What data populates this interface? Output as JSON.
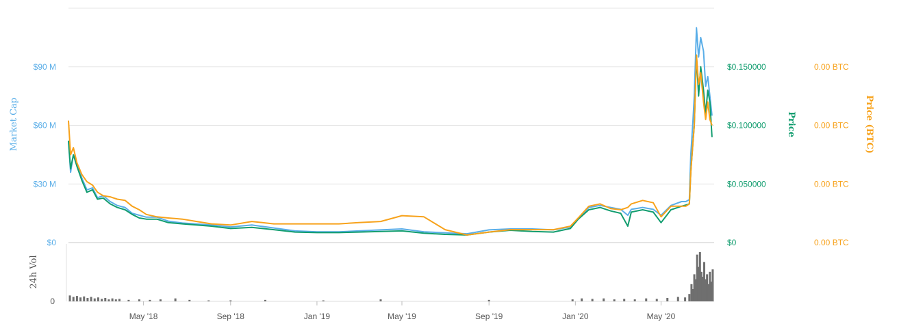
{
  "chart_data": {
    "type": "line",
    "x_ticks": [
      "May '18",
      "Sep '18",
      "Jan '19",
      "May '19",
      "Sep '19",
      "Jan '20",
      "May '20"
    ],
    "x_range": [
      "2018-01-15",
      "2020-07-15"
    ],
    "axes": {
      "market_cap": {
        "title": "Market Cap",
        "color": "#5aaee8",
        "ticks": [
          "$0",
          "$30 M",
          "$60 M",
          "$90 M"
        ],
        "ylim": [
          0,
          120
        ]
      },
      "price": {
        "title": "Price",
        "color": "#129d6f",
        "ticks": [
          "$0",
          "$0.050000",
          "$0.100000",
          "$0.150000"
        ],
        "ylim": [
          0,
          0.2
        ]
      },
      "price_btc": {
        "title": "Price (BTC)",
        "color": "#f7a21b",
        "ticks": [
          "0.00 BTC",
          "0.00 BTC",
          "0.00 BTC",
          "0.00 BTC"
        ]
      },
      "volume": {
        "title": "24h Vol",
        "color": "#555555",
        "ticks": [
          "0"
        ]
      }
    },
    "series": [
      {
        "name": "Market Cap",
        "key": "market_cap",
        "unit": "M USD",
        "points": [
          [
            "2018-01-15",
            52
          ],
          [
            "2018-01-18",
            36
          ],
          [
            "2018-01-22",
            45
          ],
          [
            "2018-01-27",
            40
          ],
          [
            "2018-02-03",
            33
          ],
          [
            "2018-02-10",
            27
          ],
          [
            "2018-02-18",
            28
          ],
          [
            "2018-02-25",
            23
          ],
          [
            "2018-03-05",
            24
          ],
          [
            "2018-03-15",
            21
          ],
          [
            "2018-03-25",
            19
          ],
          [
            "2018-04-05",
            18
          ],
          [
            "2018-04-15",
            15
          ],
          [
            "2018-04-25",
            14
          ],
          [
            "2018-05-05",
            13
          ],
          [
            "2018-05-20",
            13
          ],
          [
            "2018-06-05",
            11
          ],
          [
            "2018-06-25",
            10
          ],
          [
            "2018-07-15",
            9.5
          ],
          [
            "2018-08-05",
            9
          ],
          [
            "2018-09-01",
            8
          ],
          [
            "2018-10-01",
            9
          ],
          [
            "2018-11-01",
            7.5
          ],
          [
            "2018-12-01",
            6
          ],
          [
            "2019-01-01",
            5.5
          ],
          [
            "2019-02-01",
            5.5
          ],
          [
            "2019-03-01",
            6
          ],
          [
            "2019-04-01",
            6.5
          ],
          [
            "2019-05-01",
            7
          ],
          [
            "2019-06-01",
            5.5
          ],
          [
            "2019-07-01",
            5
          ],
          [
            "2019-08-01",
            4.5
          ],
          [
            "2019-09-01",
            6.5
          ],
          [
            "2019-10-01",
            7
          ],
          [
            "2019-11-01",
            7
          ],
          [
            "2019-12-01",
            6.5
          ],
          [
            "2019-12-25",
            8
          ],
          [
            "2020-01-05",
            12
          ],
          [
            "2020-01-20",
            18
          ],
          [
            "2020-02-05",
            19
          ],
          [
            "2020-02-20",
            18
          ],
          [
            "2020-03-05",
            17
          ],
          [
            "2020-03-15",
            14
          ],
          [
            "2020-03-20",
            17
          ],
          [
            "2020-04-05",
            18
          ],
          [
            "2020-04-20",
            17
          ],
          [
            "2020-05-01",
            14
          ],
          [
            "2020-05-15",
            19
          ],
          [
            "2020-05-30",
            21
          ],
          [
            "2020-06-05",
            21
          ],
          [
            "2020-06-10",
            22
          ],
          [
            "2020-06-12",
            45
          ],
          [
            "2020-06-15",
            62
          ],
          [
            "2020-06-17",
            75
          ],
          [
            "2020-06-20",
            110
          ],
          [
            "2020-06-23",
            95
          ],
          [
            "2020-06-26",
            105
          ],
          [
            "2020-06-30",
            98
          ],
          [
            "2020-07-03",
            80
          ],
          [
            "2020-07-06",
            85
          ],
          [
            "2020-07-09",
            75
          ],
          [
            "2020-07-12",
            65
          ]
        ]
      },
      {
        "name": "Price",
        "key": "price",
        "unit": "USD",
        "points": [
          [
            "2018-01-15",
            0.087
          ],
          [
            "2018-01-18",
            0.063
          ],
          [
            "2018-01-22",
            0.075
          ],
          [
            "2018-01-27",
            0.065
          ],
          [
            "2018-02-03",
            0.053
          ],
          [
            "2018-02-10",
            0.043
          ],
          [
            "2018-02-18",
            0.045
          ],
          [
            "2018-02-25",
            0.037
          ],
          [
            "2018-03-05",
            0.038
          ],
          [
            "2018-03-15",
            0.033
          ],
          [
            "2018-03-25",
            0.03
          ],
          [
            "2018-04-05",
            0.028
          ],
          [
            "2018-04-15",
            0.024
          ],
          [
            "2018-04-25",
            0.021
          ],
          [
            "2018-05-05",
            0.02
          ],
          [
            "2018-05-20",
            0.02
          ],
          [
            "2018-06-05",
            0.017
          ],
          [
            "2018-06-25",
            0.016
          ],
          [
            "2018-07-15",
            0.015
          ],
          [
            "2018-08-05",
            0.014
          ],
          [
            "2018-09-01",
            0.012
          ],
          [
            "2018-10-01",
            0.013
          ],
          [
            "2018-11-01",
            0.011
          ],
          [
            "2018-12-01",
            0.009
          ],
          [
            "2019-01-01",
            0.0085
          ],
          [
            "2019-02-01",
            0.0085
          ],
          [
            "2019-03-01",
            0.009
          ],
          [
            "2019-04-01",
            0.0095
          ],
          [
            "2019-05-01",
            0.01
          ],
          [
            "2019-06-01",
            0.008
          ],
          [
            "2019-07-01",
            0.007
          ],
          [
            "2019-08-01",
            0.0065
          ],
          [
            "2019-09-01",
            0.009
          ],
          [
            "2019-10-01",
            0.0105
          ],
          [
            "2019-11-01",
            0.0095
          ],
          [
            "2019-12-01",
            0.009
          ],
          [
            "2019-12-25",
            0.012
          ],
          [
            "2020-01-05",
            0.02
          ],
          [
            "2020-01-20",
            0.028
          ],
          [
            "2020-02-05",
            0.03
          ],
          [
            "2020-02-20",
            0.027
          ],
          [
            "2020-03-05",
            0.025
          ],
          [
            "2020-03-15",
            0.014
          ],
          [
            "2020-03-20",
            0.026
          ],
          [
            "2020-04-05",
            0.028
          ],
          [
            "2020-04-20",
            0.026
          ],
          [
            "2020-05-01",
            0.017
          ],
          [
            "2020-05-15",
            0.028
          ],
          [
            "2020-05-30",
            0.031
          ],
          [
            "2020-06-05",
            0.032
          ],
          [
            "2020-06-10",
            0.033
          ],
          [
            "2020-06-12",
            0.06
          ],
          [
            "2020-06-15",
            0.085
          ],
          [
            "2020-06-17",
            0.1
          ],
          [
            "2020-06-20",
            0.16
          ],
          [
            "2020-06-23",
            0.125
          ],
          [
            "2020-06-26",
            0.15
          ],
          [
            "2020-06-30",
            0.13
          ],
          [
            "2020-07-03",
            0.11
          ],
          [
            "2020-07-06",
            0.13
          ],
          [
            "2020-07-09",
            0.12
          ],
          [
            "2020-07-12",
            0.09
          ]
        ]
      },
      {
        "name": "Price (BTC)",
        "key": "price_btc",
        "unit": "relative",
        "points": [
          [
            "2018-01-15",
            0.104
          ],
          [
            "2018-01-18",
            0.075
          ],
          [
            "2018-01-22",
            0.081
          ],
          [
            "2018-01-27",
            0.068
          ],
          [
            "2018-02-03",
            0.058
          ],
          [
            "2018-02-10",
            0.052
          ],
          [
            "2018-02-18",
            0.049
          ],
          [
            "2018-02-25",
            0.043
          ],
          [
            "2018-03-05",
            0.04
          ],
          [
            "2018-03-15",
            0.039
          ],
          [
            "2018-03-25",
            0.037
          ],
          [
            "2018-04-05",
            0.036
          ],
          [
            "2018-04-15",
            0.031
          ],
          [
            "2018-04-25",
            0.028
          ],
          [
            "2018-05-05",
            0.024
          ],
          [
            "2018-05-20",
            0.022
          ],
          [
            "2018-06-05",
            0.021
          ],
          [
            "2018-06-25",
            0.02
          ],
          [
            "2018-07-15",
            0.018
          ],
          [
            "2018-08-05",
            0.016
          ],
          [
            "2018-09-01",
            0.015
          ],
          [
            "2018-10-01",
            0.018
          ],
          [
            "2018-11-01",
            0.016
          ],
          [
            "2018-12-01",
            0.016
          ],
          [
            "2019-01-01",
            0.016
          ],
          [
            "2019-02-01",
            0.016
          ],
          [
            "2019-03-01",
            0.017
          ],
          [
            "2019-04-01",
            0.018
          ],
          [
            "2019-05-01",
            0.023
          ],
          [
            "2019-06-01",
            0.022
          ],
          [
            "2019-07-01",
            0.011
          ],
          [
            "2019-08-01",
            0.0065
          ],
          [
            "2019-09-01",
            0.009
          ],
          [
            "2019-10-01",
            0.011
          ],
          [
            "2019-11-01",
            0.011
          ],
          [
            "2019-12-01",
            0.011
          ],
          [
            "2019-12-25",
            0.014
          ],
          [
            "2020-01-05",
            0.021
          ],
          [
            "2020-01-20",
            0.031
          ],
          [
            "2020-02-05",
            0.033
          ],
          [
            "2020-02-20",
            0.029
          ],
          [
            "2020-03-05",
            0.028
          ],
          [
            "2020-03-15",
            0.03
          ],
          [
            "2020-03-20",
            0.033
          ],
          [
            "2020-04-05",
            0.036
          ],
          [
            "2020-04-20",
            0.034
          ],
          [
            "2020-05-01",
            0.022
          ],
          [
            "2020-05-15",
            0.031
          ],
          [
            "2020-05-30",
            0.031
          ],
          [
            "2020-06-05",
            0.031
          ],
          [
            "2020-06-10",
            0.033
          ],
          [
            "2020-06-12",
            0.06
          ],
          [
            "2020-06-15",
            0.085
          ],
          [
            "2020-06-17",
            0.1
          ],
          [
            "2020-06-20",
            0.16
          ],
          [
            "2020-06-23",
            0.135
          ],
          [
            "2020-06-26",
            0.145
          ],
          [
            "2020-06-30",
            0.12
          ],
          [
            "2020-07-03",
            0.105
          ],
          [
            "2020-07-06",
            0.12
          ],
          [
            "2020-07-09",
            0.105
          ],
          [
            "2020-07-12",
            0.1
          ]
        ]
      }
    ],
    "volume": {
      "unit": "relative",
      "bars": [
        [
          "2018-01-17",
          0.12
        ],
        [
          "2018-01-22",
          0.09
        ],
        [
          "2018-01-27",
          0.11
        ],
        [
          "2018-02-01",
          0.08
        ],
        [
          "2018-02-06",
          0.1
        ],
        [
          "2018-02-11",
          0.07
        ],
        [
          "2018-02-16",
          0.09
        ],
        [
          "2018-02-21",
          0.06
        ],
        [
          "2018-02-26",
          0.08
        ],
        [
          "2018-03-03",
          0.05
        ],
        [
          "2018-03-08",
          0.07
        ],
        [
          "2018-03-13",
          0.04
        ],
        [
          "2018-03-18",
          0.06
        ],
        [
          "2018-03-23",
          0.04
        ],
        [
          "2018-03-28",
          0.05
        ],
        [
          "2018-04-10",
          0.03
        ],
        [
          "2018-04-25",
          0.04
        ],
        [
          "2018-05-10",
          0.03
        ],
        [
          "2018-05-25",
          0.04
        ],
        [
          "2018-06-15",
          0.06
        ],
        [
          "2018-07-05",
          0.03
        ],
        [
          "2018-08-01",
          0.02
        ],
        [
          "2018-09-01",
          0.02
        ],
        [
          "2018-10-20",
          0.03
        ],
        [
          "2019-01-10",
          0.02
        ],
        [
          "2019-04-01",
          0.04
        ],
        [
          "2019-09-01",
          0.03
        ],
        [
          "2019-12-28",
          0.04
        ],
        [
          "2020-01-10",
          0.06
        ],
        [
          "2020-01-25",
          0.05
        ],
        [
          "2020-02-10",
          0.06
        ],
        [
          "2020-02-25",
          0.04
        ],
        [
          "2020-03-10",
          0.05
        ],
        [
          "2020-03-25",
          0.04
        ],
        [
          "2020-04-10",
          0.06
        ],
        [
          "2020-04-25",
          0.05
        ],
        [
          "2020-05-10",
          0.07
        ],
        [
          "2020-05-25",
          0.09
        ],
        [
          "2020-06-04",
          0.08
        ],
        [
          "2020-06-10",
          0.15
        ],
        [
          "2020-06-13",
          0.35
        ],
        [
          "2020-06-15",
          0.25
        ],
        [
          "2020-06-17",
          0.55
        ],
        [
          "2020-06-19",
          0.45
        ],
        [
          "2020-06-21",
          0.95
        ],
        [
          "2020-06-23",
          0.7
        ],
        [
          "2020-06-25",
          1.0
        ],
        [
          "2020-06-27",
          0.6
        ],
        [
          "2020-06-29",
          0.5
        ],
        [
          "2020-07-01",
          0.8
        ],
        [
          "2020-07-03",
          0.45
        ],
        [
          "2020-07-05",
          0.55
        ],
        [
          "2020-07-07",
          0.35
        ],
        [
          "2020-07-09",
          0.6
        ],
        [
          "2020-07-11",
          0.4
        ],
        [
          "2020-07-13",
          0.65
        ]
      ]
    }
  }
}
